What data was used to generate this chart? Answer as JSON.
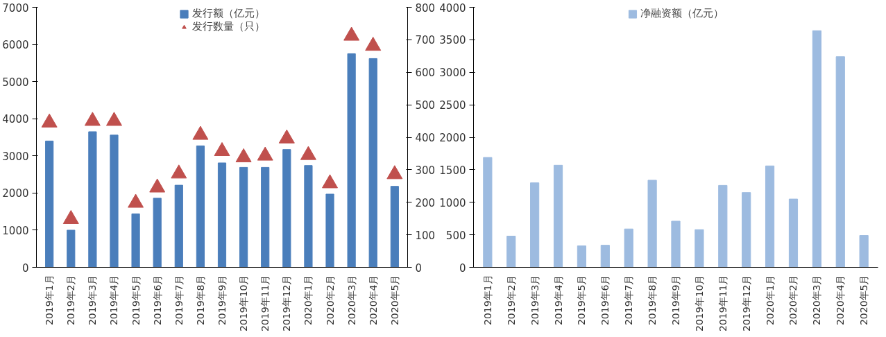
{
  "chart_data": [
    {
      "type": "bar",
      "categories": [
        "2019年1月",
        "2019年2月",
        "2019年3月",
        "2019年4月",
        "2019年5月",
        "2019年6月",
        "2019年7月",
        "2019年8月",
        "2019年9月",
        "2019年10月",
        "2019年11月",
        "2019年12月",
        "2020年1月",
        "2020年2月",
        "2020年3月",
        "2020年4月",
        "2020年5月"
      ],
      "series": [
        {
          "name": "发行额（亿元）",
          "color": "#4a7ebb",
          "values": [
            3400,
            1000,
            3650,
            3560,
            1440,
            1860,
            2210,
            3270,
            2810,
            2690,
            2690,
            3170,
            2740,
            1970,
            5750,
            5620,
            2180
          ]
        },
        {
          "name": "发行数量（只）",
          "type": "scatter",
          "axis": "y2",
          "color": "#c0504d",
          "values": [
            445,
            148,
            450,
            450,
            198,
            245,
            288,
            407,
            357,
            338,
            343,
            396,
            345,
            258,
            712,
            681,
            286
          ]
        }
      ],
      "ylim": [
        0,
        7000
      ],
      "yticks": [
        0,
        1000,
        2000,
        3000,
        4000,
        5000,
        6000,
        7000
      ],
      "y2lim": [
        0,
        800
      ],
      "y2ticks": [
        0,
        100,
        200,
        300,
        400,
        500,
        600,
        700,
        800
      ],
      "marker": "triangle",
      "grid": false,
      "legend": "top"
    },
    {
      "type": "bar",
      "categories": [
        "2019年1月",
        "2019年2月",
        "2019年3月",
        "2019年4月",
        "2019年5月",
        "2019年6月",
        "2019年7月",
        "2019年8月",
        "2019年9月",
        "2019年10月",
        "2019年11月",
        "2019年12月",
        "2020年1月",
        "2020年2月",
        "2020年3月",
        "2020年4月",
        "2020年5月"
      ],
      "series": [
        {
          "name": "净融资额（亿元）",
          "color": "#9dbbe0",
          "values": [
            1690,
            480,
            1300,
            1570,
            330,
            340,
            590,
            1340,
            710,
            580,
            1260,
            1150,
            1560,
            1050,
            3640,
            3240,
            490
          ]
        }
      ],
      "ylim": [
        0,
        4000
      ],
      "yticks": [
        0,
        500,
        1000,
        1500,
        2000,
        2500,
        3000,
        3500,
        4000
      ],
      "grid": false,
      "legend": "top"
    }
  ]
}
